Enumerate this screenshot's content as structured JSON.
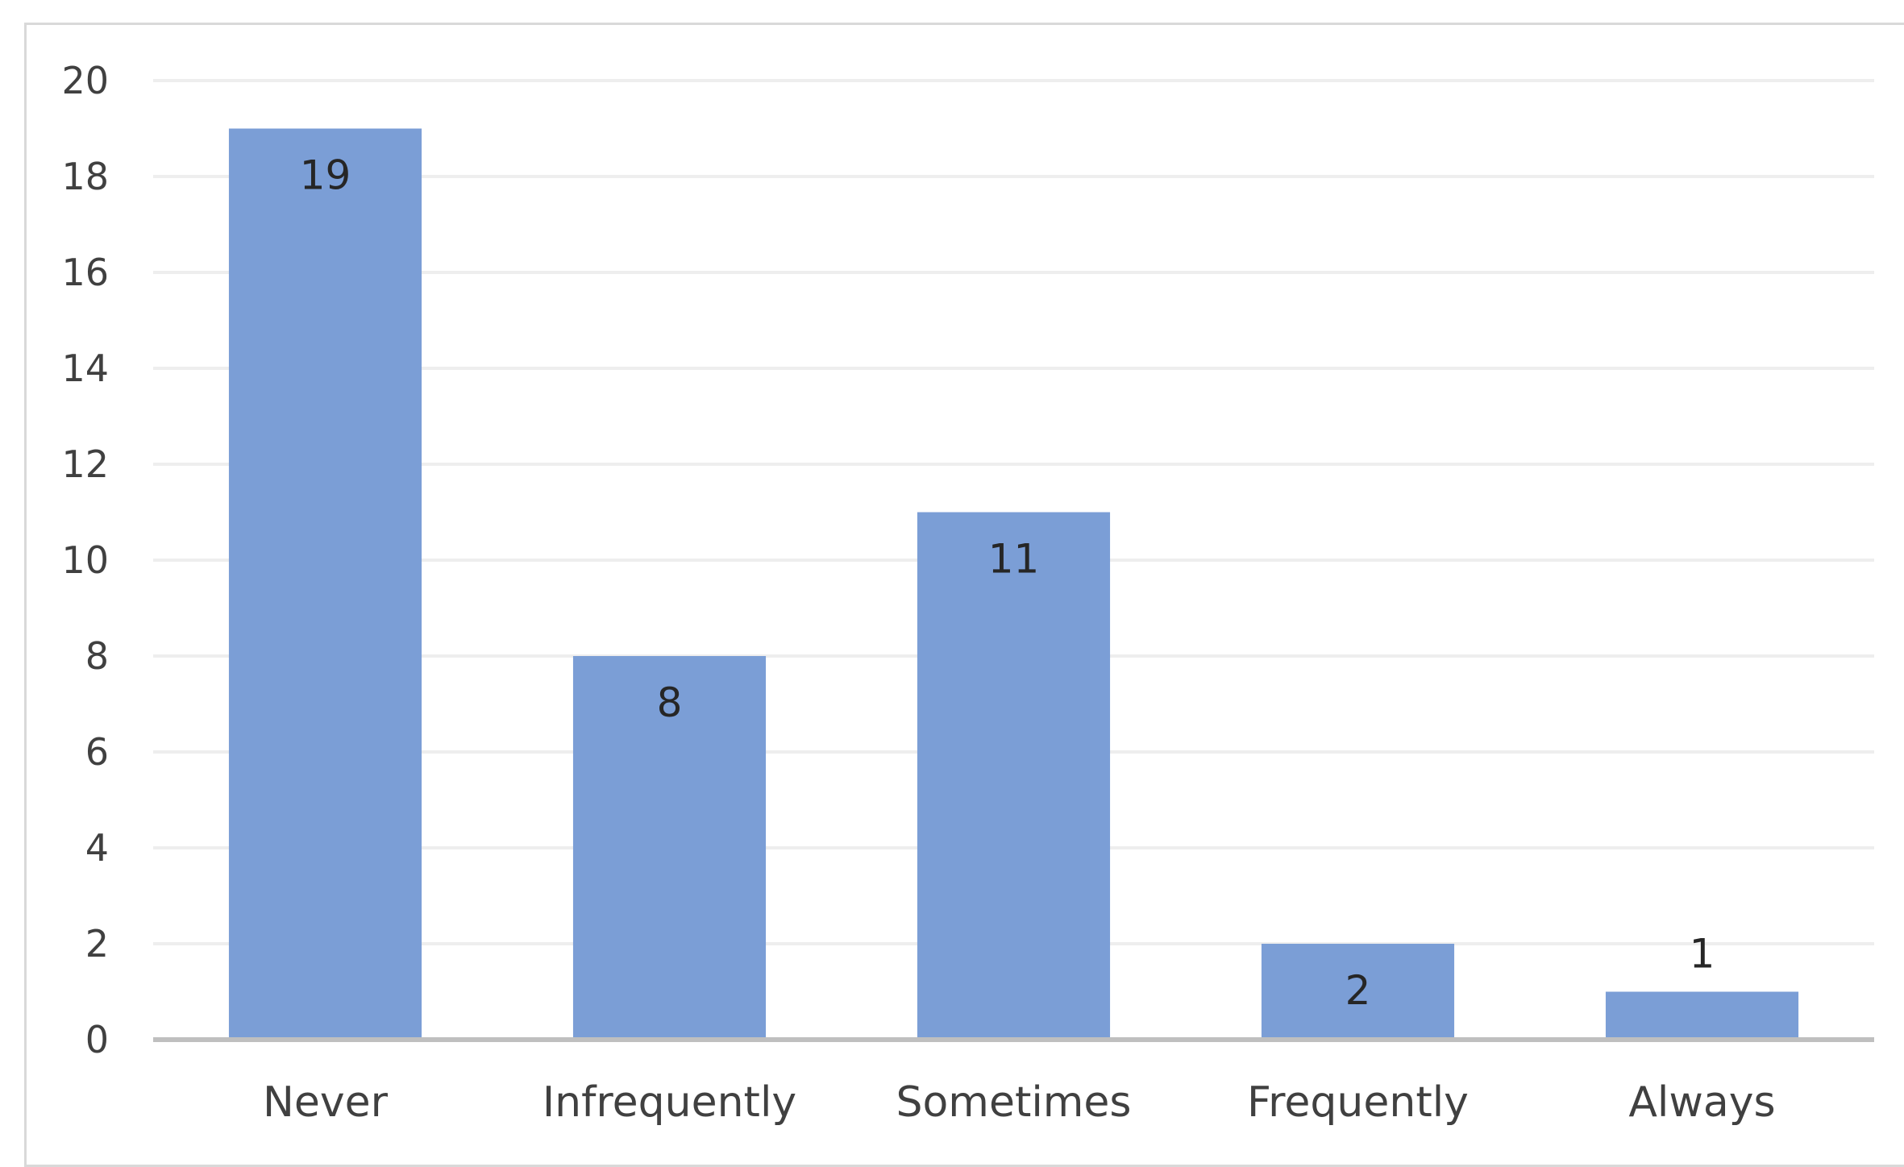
{
  "chart_data": {
    "type": "bar",
    "title": "",
    "xlabel": "",
    "ylabel": "",
    "categories": [
      "Never",
      "Infrequently",
      "Sometimes",
      "Frequently",
      "Always"
    ],
    "values": [
      19,
      8,
      11,
      2,
      1
    ],
    "data_labels": [
      "19",
      "8",
      "11",
      "2",
      "1"
    ],
    "ylim": [
      0,
      20
    ],
    "y_ticks": [
      0,
      2,
      4,
      6,
      8,
      10,
      12,
      14,
      16,
      18,
      20
    ],
    "y_tick_labels": [
      "0",
      "2",
      "4",
      "6",
      "8",
      "10",
      "12",
      "14",
      "16",
      "18",
      "20"
    ],
    "grid": true,
    "legend": "none",
    "colors": {
      "bar": "#7b9ed6",
      "grid": "#eeeeee",
      "axis": "#bfbfbf",
      "tick_text": "#404040",
      "data_label_text": "#262626"
    }
  }
}
